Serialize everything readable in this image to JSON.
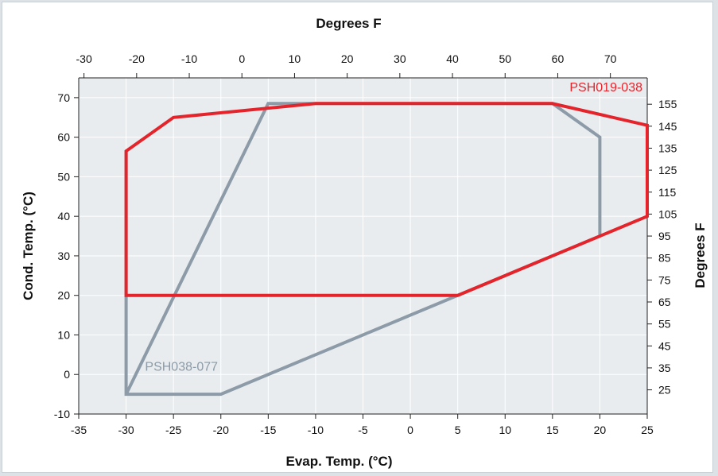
{
  "chart_data": {
    "type": "line",
    "title": "",
    "xlabel": "Evap. Temp. (°C)",
    "ylabel": "Cond. Temp. (°C)",
    "x2label": "Degrees F",
    "y2label": "Degrees F",
    "xlim": [
      -35,
      25
    ],
    "ylim": [
      -10,
      75
    ],
    "x_ticks": [
      "-35",
      "-30",
      "-25",
      "-20",
      "-15",
      "-10",
      "-5",
      "0",
      "5",
      "10",
      "15",
      "20",
      "25"
    ],
    "y_ticks": [
      "-10",
      "0",
      "10",
      "20",
      "30",
      "40",
      "50",
      "60",
      "70"
    ],
    "x2_ticks": [
      "-30",
      "-20",
      "-10",
      "0",
      "10",
      "20",
      "30",
      "40",
      "50",
      "60",
      "70"
    ],
    "y2_ticks": [
      "25",
      "35",
      "45",
      "55",
      "65",
      "75",
      "85",
      "95",
      "105",
      "115",
      "125",
      "135",
      "145",
      "155"
    ],
    "grid": true,
    "series": [
      {
        "name": "PSH038-077",
        "color": "#8c9ba7",
        "x": [
          -30,
          -30,
          -15,
          -10,
          15,
          20,
          20,
          5,
          -20,
          -30
        ],
        "y": [
          56.5,
          -5,
          68.5,
          68.5,
          68.5,
          60,
          35,
          20,
          -5,
          -5
        ]
      },
      {
        "name": "PSH019-038",
        "color": "#e5232b",
        "x": [
          -30,
          -30,
          -25,
          -10,
          15,
          25,
          25,
          5,
          -30
        ],
        "y": [
          20,
          56.5,
          65,
          68.5,
          68.5,
          63,
          40,
          20,
          20
        ]
      }
    ]
  }
}
